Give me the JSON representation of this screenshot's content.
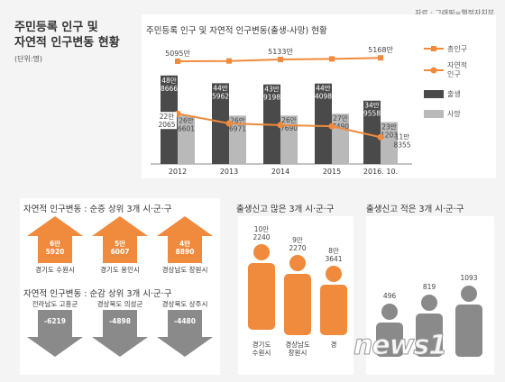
{
  "credit": "자료 · 그래픽=행정자치부",
  "title_line1": "주민등록 인구 및",
  "title_line2": "자연적 인구변동 현황",
  "unit": "(단위:명)",
  "main_chart": {
    "title": "주민등록 인구 및 자연적 인구변동(출생-사망) 현황",
    "pop_labels": [
      "5095만",
      "5133만",
      "5168만"
    ],
    "legend": {
      "total": "총인구",
      "natural": "자연적 인구",
      "birth": "출생",
      "death": "사망"
    }
  },
  "chart_data": {
    "type": "bar",
    "categories": [
      "2012",
      "2013",
      "2014",
      "2015",
      "2016. 10."
    ],
    "series": [
      {
        "name": "출생",
        "values": [
          488666,
          445962,
          439198,
          444098,
          349558
        ],
        "labels": [
          "48만\n8666",
          "44만\n5962",
          "43만\n9198",
          "44만\n4098",
          "34만\n9558"
        ]
      },
      {
        "name": "사망",
        "values": [
          266601,
          266971,
          267690,
          277490,
          231203
        ],
        "labels": [
          "26만\n6601",
          "26만\n6971",
          "26만\n7690",
          "27만\n7490",
          "23만\n1203"
        ]
      },
      {
        "name": "자연적 인구",
        "values": [
          222065,
          178991,
          171508,
          166608,
          118355
        ],
        "labels": [
          "22만\n2065",
          "",
          "",
          "",
          "11만\n8355"
        ]
      },
      {
        "name": "총인구",
        "values": [
          50950000,
          51010000,
          51330000,
          51450000,
          51680000
        ]
      }
    ]
  },
  "top_increase": {
    "title": "자연적 인구변동 : 순증 상위 3개 시·군·구",
    "items": [
      {
        "line1": "6만",
        "line2": "5920",
        "city": "경기도 수원시"
      },
      {
        "line1": "5만",
        "line2": "6007",
        "city": "경기도 용인시"
      },
      {
        "line1": "4만",
        "line2": "8890",
        "city": "경상남도 창원시"
      }
    ]
  },
  "top_decrease": {
    "title": "자연적 인구변동 : 순감 상위 3개 시·군·구",
    "items": [
      {
        "value": "-6219",
        "city": "전라남도 고흥군"
      },
      {
        "value": "-4898",
        "city": "경상북도 의성군"
      },
      {
        "value": "-4480",
        "city": "경상북도 상주시"
      }
    ]
  },
  "most_births": {
    "title": "출생신고 많은 3개 시·군·구",
    "items": [
      {
        "line1": "10만",
        "line2": "2240",
        "city1": "경기도",
        "city2": "수원시"
      },
      {
        "line1": "9만",
        "line2": "2270",
        "city1": "경상남도",
        "city2": "창원시"
      },
      {
        "line1": "8만",
        "line2": "3641",
        "city1": "경",
        "city2": ""
      }
    ]
  },
  "least_births": {
    "title": "출생신고 적은 3개 시·군·구",
    "items": [
      {
        "value": "496"
      },
      {
        "value": "819"
      },
      {
        "value": "1093"
      }
    ]
  },
  "watermark": "news1",
  "colors": {
    "orange": "#f08a3c",
    "dark": "#4a4a4a",
    "light": "#b9b9b9",
    "grayfig": "#8a8a8a"
  }
}
